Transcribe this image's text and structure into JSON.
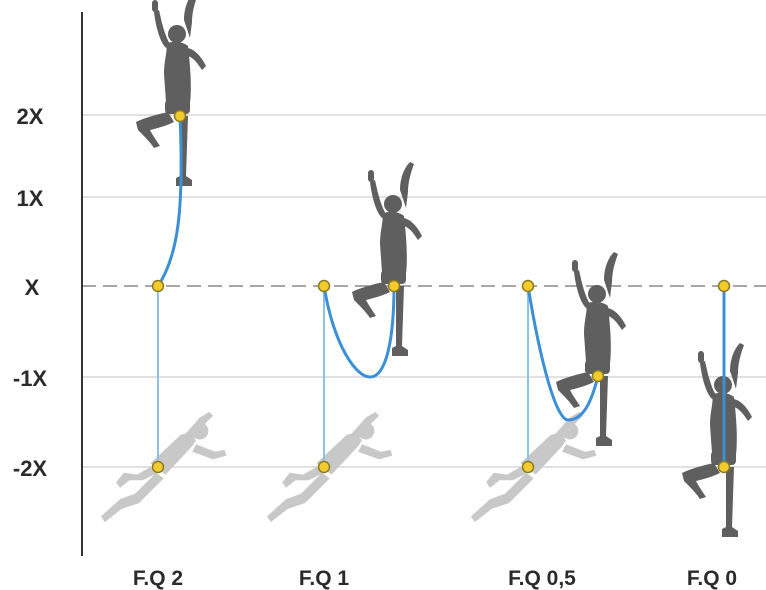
{
  "y_axis": {
    "levels": [
      {
        "label": "2X",
        "value": 2
      },
      {
        "label": "1X",
        "value": 1
      },
      {
        "label": "X",
        "value": 0,
        "dashed": true
      },
      {
        "label": "-1X",
        "value": -1
      },
      {
        "label": "-2X",
        "value": -2
      }
    ]
  },
  "scenarios": [
    {
      "label": "F.Q 2"
    },
    {
      "label": "F.Q 1"
    },
    {
      "label": "F.Q 0,5"
    },
    {
      "label": "F.Q 0"
    }
  ],
  "colors": {
    "rope": "#3b8fd6",
    "rope_light": "#8fc0ea",
    "climber": "#5f5f5f",
    "climber_faded": "#c8c8c8",
    "anchor": "#f2cc2e",
    "anchor_stroke": "#8a7a20",
    "gridline": "#d7d7d7",
    "axis": "#333333",
    "text": "#2b2b2b"
  },
  "icons": [
    "climber-icon",
    "fallen-climber-icon",
    "anchor-point-icon"
  ]
}
